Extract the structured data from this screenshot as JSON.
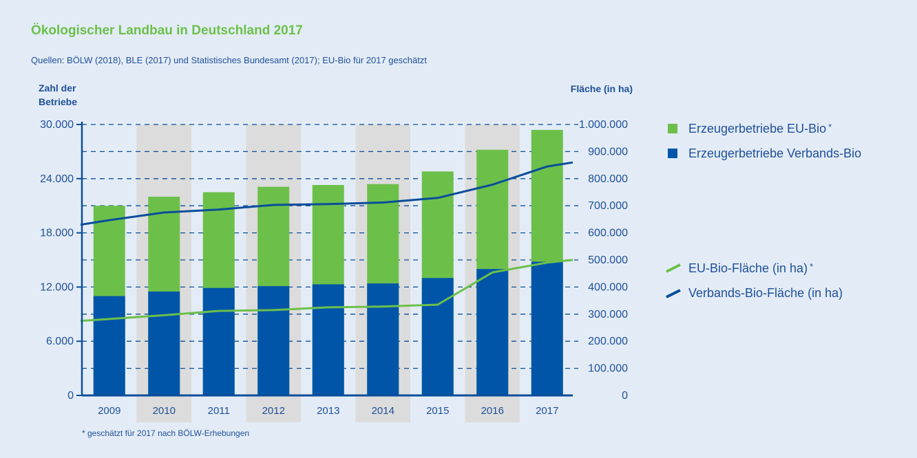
{
  "title": "Ökologischer Landbau in Deutschland 2017",
  "sources": "Quellen: BÖLW (2018), BLE (2017) und Statistisches Bundesamt (2017); EU-Bio für 2017 geschätzt",
  "footnote": "* geschätzt für 2017 nach BÖLW-Erhebungen",
  "colors": {
    "eu_bio": "#6cc04a",
    "verbands_bio": "#0055a8",
    "verbands_line": "#0a4d9a",
    "axis": "#0a4d9a",
    "text": "#1f4f99",
    "band": "#dcdcdc"
  },
  "chart_data": {
    "type": "bar",
    "categories": [
      "2009",
      "2010",
      "2011",
      "2012",
      "2013",
      "2014",
      "2015",
      "2016",
      "2017"
    ],
    "shaded_categories": [
      "2010",
      "2012",
      "2014",
      "2016"
    ],
    "left_axis": {
      "label_line1": "Zahl der",
      "label_line2": "Betriebe",
      "ylim": [
        0,
        30000
      ],
      "ticks": [
        0,
        6000,
        12000,
        18000,
        24000,
        30000
      ],
      "tick_labels": [
        "0",
        "6.000",
        "12.000",
        "18.000",
        "24.000",
        "30.000"
      ]
    },
    "right_axis": {
      "label": "Fläche (in ha)",
      "ylim": [
        0,
        1000000
      ],
      "ticks": [
        0,
        100000,
        200000,
        300000,
        400000,
        500000,
        600000,
        700000,
        800000,
        900000,
        1000000
      ],
      "tick_labels": [
        "0",
        "100.000",
        "200.000",
        "300.000",
        "400.000",
        "500.000",
        "600.000",
        "700.000",
        "800.000",
        "900.000",
        "1.000.000"
      ]
    },
    "bar_series": [
      {
        "name": "Erzeugerbetriebe EU-Bio",
        "marker": "*",
        "values": [
          21000,
          22000,
          22500,
          23100,
          23300,
          23400,
          24800,
          27200,
          29400
        ]
      },
      {
        "name": "Erzeugerbetriebe Verbands-Bio",
        "values": [
          11000,
          11500,
          11900,
          12100,
          12300,
          12400,
          13000,
          14000,
          14800
        ]
      }
    ],
    "line_series": [
      {
        "name": "EU-Bio-Fläche (in ha)",
        "marker": "*",
        "values": [
          282000,
          296000,
          312000,
          315000,
          325000,
          328000,
          335000,
          454000,
          490000
        ]
      },
      {
        "name": "Verbands-Bio-Fläche (in ha)",
        "values": [
          647000,
          675000,
          686000,
          703000,
          706000,
          712000,
          729000,
          778000,
          845000
        ]
      }
    ],
    "line_extension": {
      "eu_start": 275000,
      "verbands_start": 630000,
      "eu_end": 500000,
      "verbands_end": 860000
    },
    "grid": true,
    "legend_position": "right"
  }
}
